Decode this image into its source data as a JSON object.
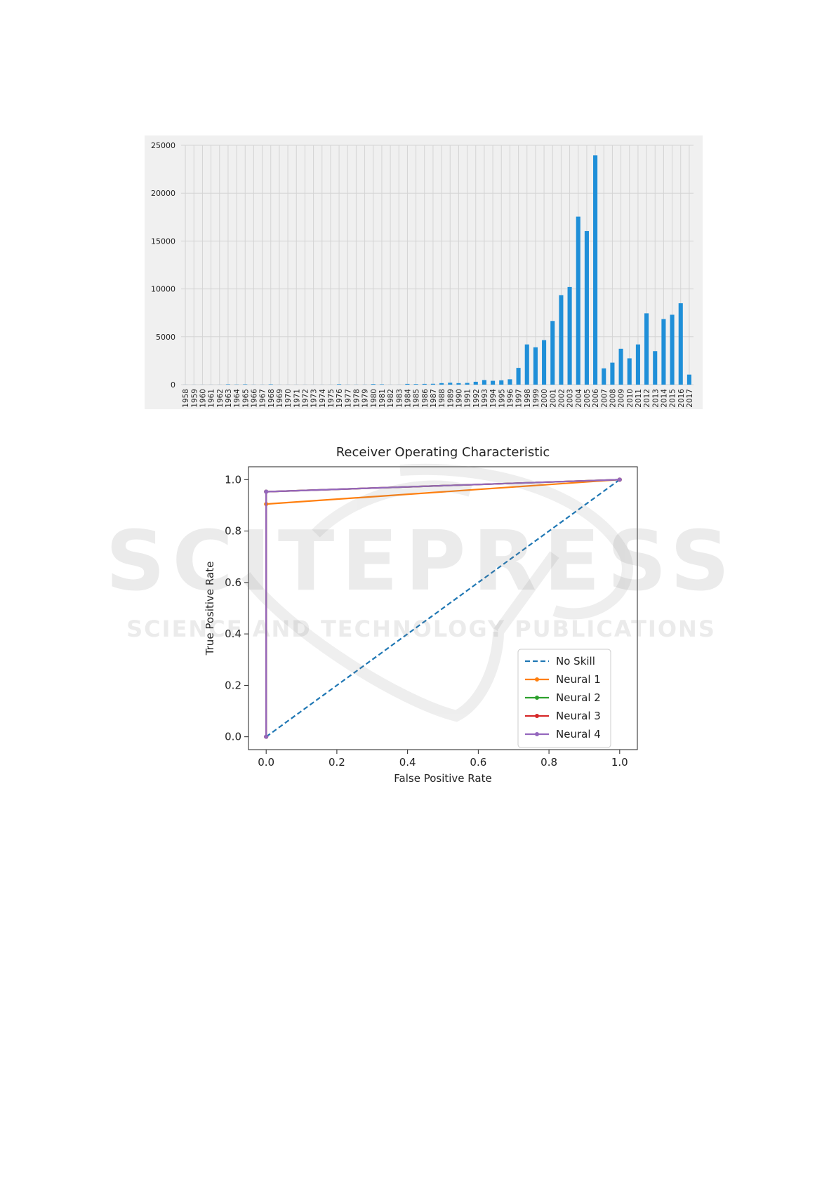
{
  "watermark": {
    "line1": "SCITEPRESS",
    "line2": "SCIENCE AND TECHNOLOGY PUBLICATIONS"
  },
  "chart_data": [
    {
      "type": "bar",
      "title": "",
      "xlabel": "",
      "ylabel": "",
      "ylim": [
        0,
        25000
      ],
      "yticks": [
        0,
        5000,
        10000,
        15000,
        20000,
        25000
      ],
      "grid": true,
      "bar_color": "#1f8fd8",
      "background_color": "#f0f0f0",
      "categories": [
        "1958",
        "1959",
        "1960",
        "1961",
        "1962",
        "1963",
        "1964",
        "1965",
        "1966",
        "1967",
        "1968",
        "1969",
        "1970",
        "1971",
        "1972",
        "1973",
        "1974",
        "1975",
        "1976",
        "1977",
        "1978",
        "1979",
        "1980",
        "1981",
        "1982",
        "1983",
        "1984",
        "1985",
        "1986",
        "1987",
        "1988",
        "1989",
        "1990",
        "1991",
        "1992",
        "1993",
        "1994",
        "1995",
        "1996",
        "1997",
        "1998",
        "1999",
        "2000",
        "2001",
        "2002",
        "2003",
        "2004",
        "2005",
        "2006",
        "2007",
        "2008",
        "2009",
        "2010",
        "2011",
        "2012",
        "2013",
        "2014",
        "2015",
        "2016",
        "2017"
      ],
      "values": [
        5,
        5,
        5,
        5,
        5,
        40,
        20,
        40,
        10,
        10,
        40,
        5,
        5,
        5,
        5,
        5,
        5,
        5,
        50,
        10,
        10,
        10,
        60,
        40,
        5,
        5,
        80,
        60,
        80,
        90,
        160,
        200,
        160,
        180,
        300,
        480,
        400,
        450,
        560,
        1750,
        4200,
        3900,
        4650,
        6650,
        9350,
        10200,
        17550,
        16050,
        23950,
        1700,
        2300,
        3750,
        2750,
        4200,
        7450,
        3500,
        6850,
        7300,
        8500,
        1050
      ]
    },
    {
      "type": "line",
      "title": "Receiver Operating Characteristic",
      "xlabel": "False Positive Rate",
      "ylabel": "True Positive Rate",
      "xlim": [
        -0.05,
        1.05
      ],
      "ylim": [
        -0.05,
        1.05
      ],
      "xticks": [
        "0.0",
        "0.2",
        "0.4",
        "0.6",
        "0.8",
        "1.0"
      ],
      "yticks": [
        "0.0",
        "0.2",
        "0.4",
        "0.6",
        "0.8",
        "1.0"
      ],
      "grid": false,
      "legend_position": "lower-right",
      "series": [
        {
          "name": "No Skill",
          "color": "#1f77b4",
          "style": "dashed",
          "markers": false,
          "x": [
            0,
            1
          ],
          "y": [
            0,
            1
          ]
        },
        {
          "name": "Neural 1",
          "color": "#ff7f0e",
          "style": "solid",
          "markers": true,
          "x": [
            0,
            0,
            1
          ],
          "y": [
            0,
            0.905,
            1
          ]
        },
        {
          "name": "Neural 2",
          "color": "#2ca02c",
          "style": "solid",
          "markers": true,
          "x": [
            0,
            0,
            1
          ],
          "y": [
            0,
            0.953,
            1
          ]
        },
        {
          "name": "Neural 3",
          "color": "#d62728",
          "style": "solid",
          "markers": true,
          "x": [
            0,
            0,
            1
          ],
          "y": [
            0,
            0.953,
            1
          ]
        },
        {
          "name": "Neural 4",
          "color": "#9467bd",
          "style": "solid",
          "markers": true,
          "x": [
            0,
            0,
            1
          ],
          "y": [
            0,
            0.953,
            1
          ]
        }
      ]
    }
  ]
}
